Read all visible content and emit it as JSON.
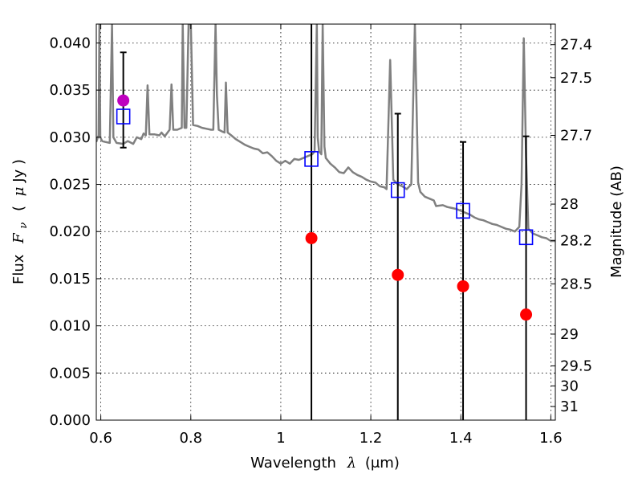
{
  "chart_data": {
    "type": "scatter",
    "xlabel_text": "Wavelength",
    "xlabel_symbol": "λ",
    "xlabel_unit": "(μm)",
    "ylabel_text": "Flux",
    "ylabel_symbol": "F",
    "ylabel_symbol_sub": "ν",
    "ylabel_unit_open": "(",
    "ylabel_unit_mu": "μ",
    "ylabel_unit_rest": "Jy )",
    "y2label": "Magnitude (AB)",
    "xlim": [
      0.59,
      1.61
    ],
    "ylim": [
      0.0,
      0.042
    ],
    "grid": true,
    "xticks": [
      {
        "value": 0.6,
        "label": "0.6"
      },
      {
        "value": 0.8,
        "label": "0.8"
      },
      {
        "value": 1.0,
        "label": "1"
      },
      {
        "value": 1.2,
        "label": "1.2"
      },
      {
        "value": 1.4,
        "label": "1.4"
      },
      {
        "value": 1.6,
        "label": "1.6"
      }
    ],
    "yticks": [
      {
        "value": 0.0,
        "label": "0.000"
      },
      {
        "value": 0.005,
        "label": "0.005"
      },
      {
        "value": 0.01,
        "label": "0.010"
      },
      {
        "value": 0.015,
        "label": "0.015"
      },
      {
        "value": 0.02,
        "label": "0.020"
      },
      {
        "value": 0.025,
        "label": "0.025"
      },
      {
        "value": 0.03,
        "label": "0.030"
      },
      {
        "value": 0.035,
        "label": "0.035"
      },
      {
        "value": 0.04,
        "label": "0.040"
      }
    ],
    "y2ticks": [
      {
        "mag": 27.4,
        "label": "27.4"
      },
      {
        "mag": 27.5,
        "label": "27.5"
      },
      {
        "mag": 27.7,
        "label": "27.7"
      },
      {
        "mag": 28.0,
        "label": "28"
      },
      {
        "mag": 28.2,
        "label": "28.2"
      },
      {
        "mag": 28.5,
        "label": "28.5"
      },
      {
        "mag": 29.0,
        "label": "29"
      },
      {
        "mag": 29.5,
        "label": "29.5"
      },
      {
        "mag": 30.0,
        "label": "30"
      },
      {
        "mag": 31.0,
        "label": "31"
      }
    ],
    "template_spectrum": {
      "color": "#808080",
      "points": [
        [
          0.59,
          0.0295
        ],
        [
          0.595,
          0.0302
        ],
        [
          0.597,
          0.042
        ],
        [
          0.599,
          0.03
        ],
        [
          0.603,
          0.0296
        ],
        [
          0.61,
          0.0295
        ],
        [
          0.62,
          0.0294
        ],
        [
          0.625,
          0.042
        ],
        [
          0.628,
          0.03
        ],
        [
          0.635,
          0.0294
        ],
        [
          0.65,
          0.0293
        ],
        [
          0.66,
          0.0296
        ],
        [
          0.672,
          0.0293
        ],
        [
          0.68,
          0.03
        ],
        [
          0.69,
          0.0298
        ],
        [
          0.695,
          0.0304
        ],
        [
          0.7,
          0.0302
        ],
        [
          0.704,
          0.0355
        ],
        [
          0.708,
          0.0303
        ],
        [
          0.72,
          0.0303
        ],
        [
          0.73,
          0.0302
        ],
        [
          0.735,
          0.0305
        ],
        [
          0.742,
          0.0301
        ],
        [
          0.75,
          0.0306
        ],
        [
          0.753,
          0.0308
        ],
        [
          0.757,
          0.0356
        ],
        [
          0.761,
          0.0308
        ],
        [
          0.77,
          0.0308
        ],
        [
          0.78,
          0.031
        ],
        [
          0.782,
          0.042
        ],
        [
          0.786,
          0.031
        ],
        [
          0.79,
          0.031
        ],
        [
          0.795,
          0.042
        ],
        [
          0.8,
          0.042
        ],
        [
          0.805,
          0.0313
        ],
        [
          0.815,
          0.0312
        ],
        [
          0.825,
          0.031
        ],
        [
          0.835,
          0.0309
        ],
        [
          0.845,
          0.0308
        ],
        [
          0.85,
          0.0308
        ],
        [
          0.855,
          0.042
        ],
        [
          0.858,
          0.0345
        ],
        [
          0.862,
          0.0308
        ],
        [
          0.87,
          0.0306
        ],
        [
          0.875,
          0.0305
        ],
        [
          0.878,
          0.0358
        ],
        [
          0.882,
          0.0305
        ],
        [
          0.89,
          0.0302
        ],
        [
          0.9,
          0.0298
        ],
        [
          0.91,
          0.0295
        ],
        [
          0.92,
          0.0292
        ],
        [
          0.93,
          0.029
        ],
        [
          0.94,
          0.0288
        ],
        [
          0.95,
          0.0287
        ],
        [
          0.96,
          0.0283
        ],
        [
          0.97,
          0.0284
        ],
        [
          0.98,
          0.028
        ],
        [
          0.99,
          0.0275
        ],
        [
          1.0,
          0.0272
        ],
        [
          1.01,
          0.0275
        ],
        [
          1.02,
          0.0272
        ],
        [
          1.03,
          0.0277
        ],
        [
          1.04,
          0.0276
        ],
        [
          1.05,
          0.0278
        ],
        [
          1.06,
          0.028
        ],
        [
          1.07,
          0.0282
        ],
        [
          1.075,
          0.0285
        ],
        [
          1.08,
          0.042
        ],
        [
          1.082,
          0.03
        ],
        [
          1.085,
          0.0285
        ],
        [
          1.09,
          0.0282
        ],
        [
          1.093,
          0.042
        ],
        [
          1.097,
          0.029
        ],
        [
          1.1,
          0.0278
        ],
        [
          1.11,
          0.0272
        ],
        [
          1.12,
          0.0268
        ],
        [
          1.13,
          0.0263
        ],
        [
          1.14,
          0.0262
        ],
        [
          1.15,
          0.0268
        ],
        [
          1.16,
          0.0263
        ],
        [
          1.17,
          0.026
        ],
        [
          1.18,
          0.0258
        ],
        [
          1.19,
          0.0255
        ],
        [
          1.2,
          0.0253
        ],
        [
          1.21,
          0.0252
        ],
        [
          1.22,
          0.0248
        ],
        [
          1.23,
          0.0247
        ],
        [
          1.235,
          0.0245
        ],
        [
          1.243,
          0.0382
        ],
        [
          1.25,
          0.0255
        ],
        [
          1.26,
          0.025
        ],
        [
          1.27,
          0.0248
        ],
        [
          1.28,
          0.0245
        ],
        [
          1.29,
          0.025
        ],
        [
          1.298,
          0.042
        ],
        [
          1.305,
          0.0252
        ],
        [
          1.31,
          0.0242
        ],
        [
          1.32,
          0.0237
        ],
        [
          1.33,
          0.0235
        ],
        [
          1.34,
          0.0233
        ],
        [
          1.345,
          0.0227
        ],
        [
          1.36,
          0.0228
        ],
        [
          1.37,
          0.0226
        ],
        [
          1.38,
          0.0225
        ],
        [
          1.39,
          0.0224
        ],
        [
          1.4,
          0.0222
        ],
        [
          1.41,
          0.022
        ],
        [
          1.42,
          0.0218
        ],
        [
          1.43,
          0.0215
        ],
        [
          1.44,
          0.0213
        ],
        [
          1.45,
          0.0212
        ],
        [
          1.46,
          0.021
        ],
        [
          1.47,
          0.0208
        ],
        [
          1.48,
          0.0207
        ],
        [
          1.49,
          0.0205
        ],
        [
          1.5,
          0.0203
        ],
        [
          1.51,
          0.0202
        ],
        [
          1.52,
          0.02
        ],
        [
          1.53,
          0.0205
        ],
        [
          1.535,
          0.025
        ],
        [
          1.54,
          0.0405
        ],
        [
          1.545,
          0.028
        ],
        [
          1.55,
          0.0203
        ],
        [
          1.56,
          0.0198
        ],
        [
          1.57,
          0.0196
        ],
        [
          1.58,
          0.0194
        ],
        [
          1.59,
          0.0193
        ],
        [
          1.6,
          0.019
        ],
        [
          1.61,
          0.019
        ]
      ]
    },
    "observed": [
      {
        "x": 0.65,
        "y": 0.0339,
        "err_low": 0.0289,
        "err_high": 0.039,
        "color": "#bf00bf"
      },
      {
        "x": 1.068,
        "y": 0.0193,
        "err_low": 0.0,
        "err_high": 0.042,
        "color": "#ff0000"
      },
      {
        "x": 1.26,
        "y": 0.0154,
        "err_low": 0.0,
        "err_high": 0.0325,
        "color": "#ff0000"
      },
      {
        "x": 1.405,
        "y": 0.0142,
        "err_low": 0.0,
        "err_high": 0.0295,
        "color": "#ff0000"
      },
      {
        "x": 1.545,
        "y": 0.0112,
        "err_low": 0.0,
        "err_high": 0.0301,
        "color": "#ff0000"
      }
    ],
    "model": [
      {
        "x": 0.65,
        "y": 0.0322,
        "color": "#0000ff"
      },
      {
        "x": 1.068,
        "y": 0.0277,
        "color": "#0000ff"
      },
      {
        "x": 1.26,
        "y": 0.0244,
        "color": "#0000ff"
      },
      {
        "x": 1.405,
        "y": 0.0222,
        "color": "#0000ff"
      },
      {
        "x": 1.545,
        "y": 0.0194,
        "color": "#0000ff"
      }
    ]
  }
}
